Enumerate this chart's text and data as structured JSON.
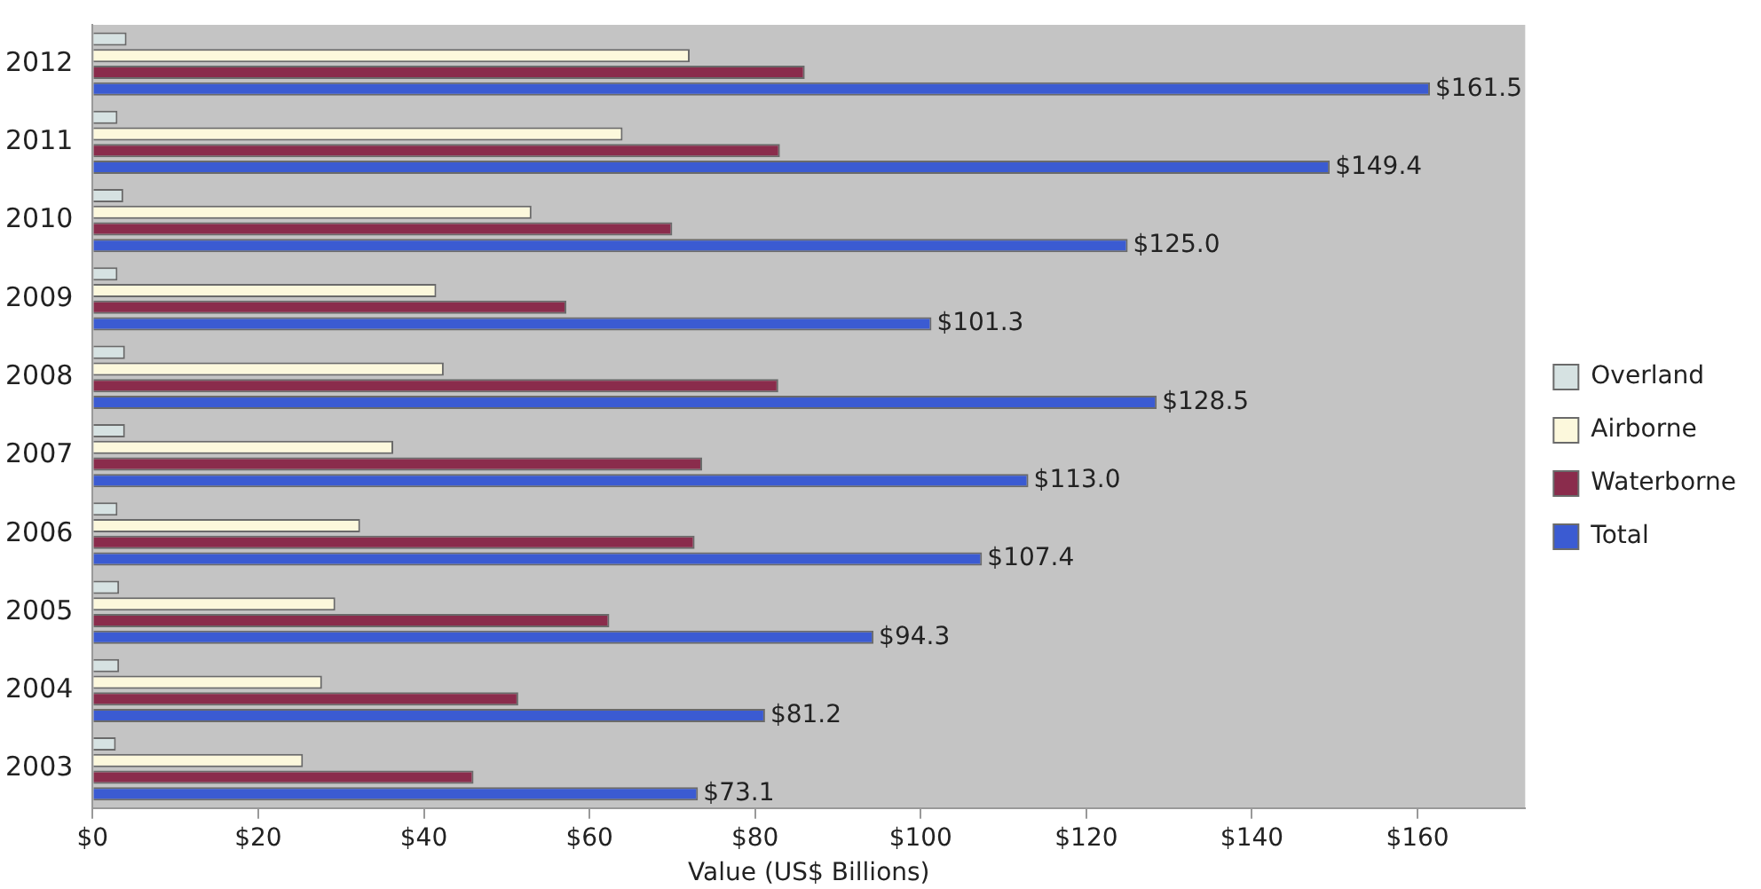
{
  "chart_data": {
    "type": "bar",
    "orientation": "horizontal",
    "xlabel": "Value (US$ Billions)",
    "categories": [
      "2012",
      "2011",
      "2010",
      "2009",
      "2008",
      "2007",
      "2006",
      "2005",
      "2004",
      "2003"
    ],
    "series": [
      {
        "name": "Overland",
        "color": "#d6e2e2",
        "values": [
          4.1,
          3,
          3.7,
          3,
          3.9,
          3.9,
          3,
          3.2,
          3.2,
          2.8
        ]
      },
      {
        "name": "Airborne",
        "color": "#fcf8dc",
        "values": [
          72.1,
          64,
          53,
          41.5,
          42.4,
          36.3,
          32.3,
          29.3,
          27.7,
          25.4
        ]
      },
      {
        "name": "Waterborne",
        "color": "#8a2c4c",
        "values": [
          86,
          83,
          70,
          57.2,
          82.8,
          73.6,
          72.7,
          62.4,
          51.4,
          46
        ]
      },
      {
        "name": "Total",
        "color": "#3b5bd2",
        "values": [
          161.5,
          149.4,
          125,
          101.3,
          128.5,
          113,
          107.4,
          94.3,
          81.2,
          73.1
        ],
        "value_labels": [
          "$161.5",
          "$149.4",
          "$125.0",
          "$101.3",
          "$128.5",
          "$113.0",
          "$107.4",
          "$94.3",
          "$81.2",
          "$73.1"
        ]
      }
    ],
    "xlim": [
      0,
      173
    ],
    "xticks": [
      {
        "value": 0,
        "label": "$0"
      },
      {
        "value": 20,
        "label": "$20"
      },
      {
        "value": 40,
        "label": "$40"
      },
      {
        "value": 60,
        "label": "$60"
      },
      {
        "value": 80,
        "label": "$80"
      },
      {
        "value": 100,
        "label": "$100"
      },
      {
        "value": 120,
        "label": "$120"
      },
      {
        "value": 140,
        "label": "$140"
      },
      {
        "value": 160,
        "label": "$160"
      }
    ],
    "grid": false,
    "legend": "right"
  }
}
